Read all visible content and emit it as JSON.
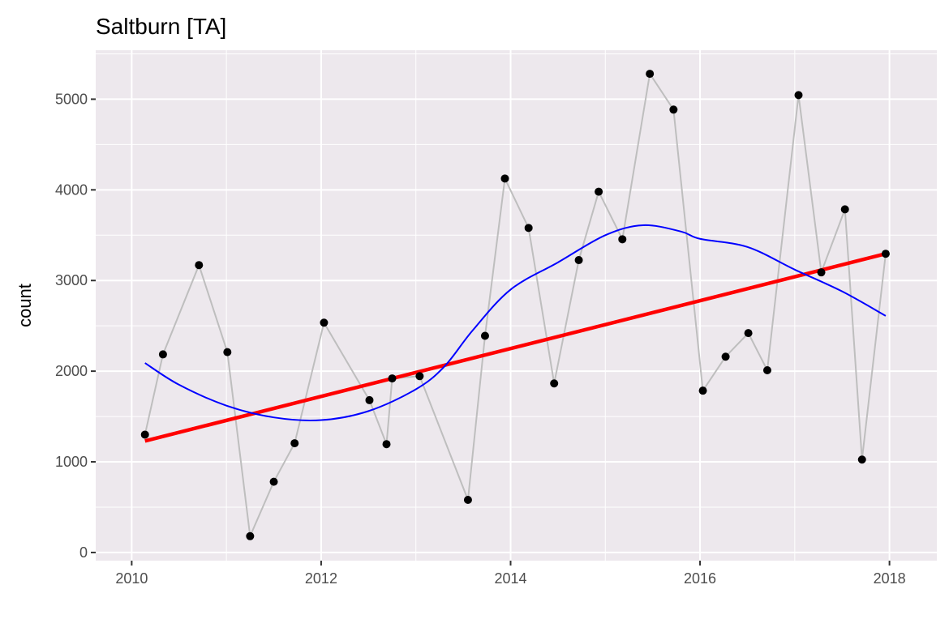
{
  "chart_data": {
    "type": "line",
    "title": "Saltburn  [TA]",
    "xlabel": "",
    "ylabel": "count",
    "xlim": [
      2009.62,
      2018.5
    ],
    "ylim": [
      -90,
      5540
    ],
    "x_ticks": [
      2010,
      2012,
      2014,
      2016,
      2018
    ],
    "y_ticks": [
      0,
      1000,
      2000,
      3000,
      4000,
      5000
    ],
    "grid": true,
    "background": "#EDE8ED",
    "series": [
      {
        "name": "observations",
        "style": "line+points",
        "line_color": "#BEBEBE",
        "point_color": "#000000",
        "x": [
          2010.14,
          2010.33,
          2010.71,
          2011.01,
          2011.25,
          2011.5,
          2011.72,
          2012.03,
          2012.51,
          2012.69,
          2012.75,
          2013.04,
          2013.55,
          2013.73,
          2013.94,
          2014.19,
          2014.46,
          2014.72,
          2014.93,
          2015.18,
          2015.47,
          2015.72,
          2016.03,
          2016.27,
          2016.51,
          2016.71,
          2017.04,
          2017.28,
          2017.53,
          2017.71,
          2017.96
        ],
        "y": [
          1300,
          2185,
          3170,
          2210,
          180,
          780,
          1205,
          2535,
          1680,
          1195,
          1920,
          1945,
          580,
          2390,
          4125,
          3580,
          1865,
          3225,
          3980,
          3455,
          5280,
          4885,
          1785,
          2160,
          2420,
          2010,
          5045,
          3090,
          3785,
          1025,
          3295
        ]
      },
      {
        "name": "linear-trend",
        "style": "line",
        "color": "#FF0000",
        "x": [
          2010.14,
          2017.96
        ],
        "y": [
          1230,
          3295
        ]
      },
      {
        "name": "loess-smooth",
        "style": "line",
        "color": "#0000FF",
        "x": [
          2010.14,
          2010.5,
          2011.0,
          2011.5,
          2012.0,
          2012.5,
          2013.0,
          2013.3,
          2013.6,
          2014.0,
          2014.5,
          2015.0,
          2015.4,
          2015.8,
          2016.0,
          2016.5,
          2017.0,
          2017.5,
          2017.96
        ],
        "y": [
          2090,
          1850,
          1620,
          1490,
          1460,
          1560,
          1800,
          2050,
          2450,
          2900,
          3200,
          3500,
          3610,
          3540,
          3460,
          3370,
          3120,
          2880,
          2610
        ]
      }
    ]
  }
}
